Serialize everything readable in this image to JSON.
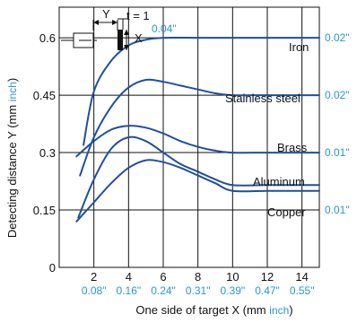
{
  "chart_data": {
    "type": "line",
    "xlabel": "One side of target X (mm inch)",
    "xlabel_main": "One side of target X (mm ",
    "xlabel_unit": "inch",
    "xlabel_close": ")",
    "ylabel": "Detecting distance Y (mm inch)",
    "ylabel_main": "Detecting distance Y (mm ",
    "ylabel_unit": "inch",
    "ylabel_close": ")",
    "xlim": [
      0,
      15
    ],
    "ylim": [
      0,
      0.68
    ],
    "grid": true,
    "x_ticks": [
      {
        "value": 2,
        "mm": "2",
        "inch": "0.08\""
      },
      {
        "value": 4,
        "mm": "4",
        "inch": "0.16\""
      },
      {
        "value": 6,
        "mm": "6",
        "inch": "0.24\""
      },
      {
        "value": 8,
        "mm": "8",
        "inch": "0.31\""
      },
      {
        "value": 10,
        "mm": "10",
        "inch": "0.39\""
      },
      {
        "value": 12,
        "mm": "12",
        "inch": "0.47\""
      },
      {
        "value": 14,
        "mm": "14",
        "inch": "0.55\""
      }
    ],
    "y_ticks": [
      {
        "value": 0,
        "label": "0"
      },
      {
        "value": 0.15,
        "label": "0.15"
      },
      {
        "value": 0.3,
        "label": "0.3"
      },
      {
        "value": 0.45,
        "label": "0.45"
      },
      {
        "value": 0.6,
        "label": "0.6"
      }
    ],
    "right_inch_labels": [
      {
        "value": 0.6,
        "label": "0.02\""
      },
      {
        "value": 0.45,
        "label": "0.02\""
      },
      {
        "value": 0.3,
        "label": "0.01\""
      },
      {
        "value": 0.15,
        "label": "0.01\""
      }
    ],
    "series": [
      {
        "name": "Iron",
        "x": [
          1.4,
          2,
          3,
          4,
          5,
          6,
          8,
          10,
          12,
          14,
          15
        ],
        "y": [
          0.32,
          0.46,
          0.54,
          0.58,
          0.595,
          0.6,
          0.6,
          0.6,
          0.6,
          0.6,
          0.6
        ]
      },
      {
        "name": "Stainless steel",
        "x": [
          1.2,
          2,
          3,
          4,
          5,
          6,
          7,
          8,
          9,
          10,
          12,
          14,
          15
        ],
        "y": [
          0.24,
          0.34,
          0.42,
          0.47,
          0.49,
          0.485,
          0.475,
          0.465,
          0.455,
          0.45,
          0.45,
          0.45,
          0.45
        ]
      },
      {
        "name": "Brass",
        "x": [
          1,
          2,
          3,
          4,
          5,
          6,
          7,
          8,
          9,
          10,
          12,
          14,
          15
        ],
        "y": [
          0.29,
          0.33,
          0.36,
          0.37,
          0.365,
          0.35,
          0.33,
          0.315,
          0.305,
          0.3,
          0.3,
          0.3,
          0.3
        ]
      },
      {
        "name": "Aluminum",
        "x": [
          1.1,
          2,
          3,
          4,
          5,
          6,
          7,
          8,
          9,
          10,
          12,
          14,
          15
        ],
        "y": [
          0.13,
          0.23,
          0.31,
          0.34,
          0.33,
          0.3,
          0.27,
          0.25,
          0.23,
          0.215,
          0.215,
          0.215,
          0.215
        ]
      },
      {
        "name": "Copper",
        "x": [
          1,
          2,
          3,
          4,
          5,
          6,
          7,
          8,
          9,
          10,
          12,
          14,
          15
        ],
        "y": [
          0.12,
          0.17,
          0.22,
          0.26,
          0.28,
          0.275,
          0.26,
          0.24,
          0.22,
          0.2,
          0.2,
          0.2,
          0.2
        ]
      }
    ],
    "curve_labels": {
      "iron": "Iron",
      "stainless": "Stainless steel",
      "brass": "Brass",
      "aluminum": "Aluminum",
      "copper": "Copper"
    },
    "inset": {
      "y_label": "Y",
      "x_label": "X",
      "t_label": "t = 1",
      "inch_label": "0.04\""
    }
  },
  "colors": {
    "curve": "#1f4f9c",
    "inch": "#2c95d4",
    "grid": "#111111",
    "text": "#111111"
  }
}
